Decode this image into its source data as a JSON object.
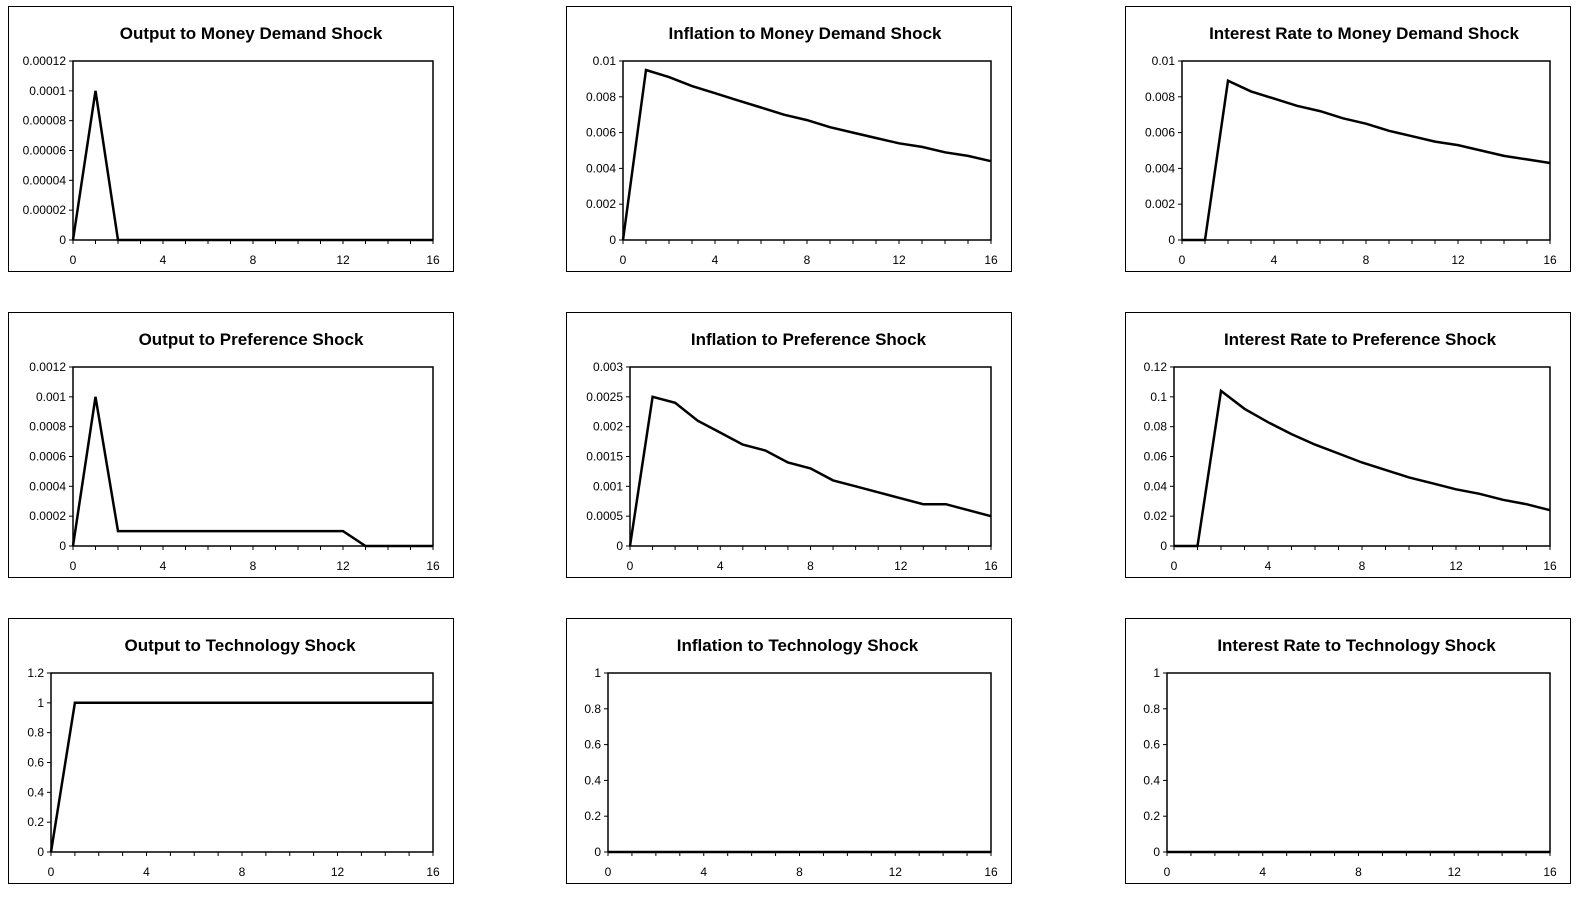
{
  "chart_data": [
    {
      "type": "line",
      "title": "Output to Money Demand Shock",
      "x": [
        0,
        1,
        2,
        3,
        4,
        5,
        6,
        7,
        8,
        9,
        10,
        11,
        12,
        13,
        14,
        15,
        16
      ],
      "values": [
        0,
        0.0001,
        0,
        0,
        0,
        0,
        0,
        0,
        0,
        0,
        0,
        0,
        0,
        0,
        0,
        0,
        0
      ],
      "ylim": [
        0,
        0.00012
      ],
      "yticks": [
        "0.00012",
        "0.0001",
        "0.00008",
        "0.00006",
        "0.00004",
        "0.00002",
        "0"
      ],
      "ytick_values": [
        0.00012,
        0.0001,
        8e-05,
        6e-05,
        4e-05,
        2e-05,
        0
      ],
      "xticks": [
        "0",
        "4",
        "8",
        "12",
        "16"
      ],
      "xtick_values": [
        0,
        4,
        8,
        12,
        16
      ],
      "xlim": [
        0,
        16
      ],
      "grid": false
    },
    {
      "type": "line",
      "title": "Inflation to Money Demand Shock",
      "x": [
        0,
        1,
        2,
        3,
        4,
        5,
        6,
        7,
        8,
        9,
        10,
        11,
        12,
        13,
        14,
        15,
        16
      ],
      "values": [
        0,
        0.0095,
        0.0091,
        0.0086,
        0.0082,
        0.0078,
        0.0074,
        0.007,
        0.0067,
        0.0063,
        0.006,
        0.0057,
        0.0054,
        0.0052,
        0.0049,
        0.0047,
        0.0044
      ],
      "ylim": [
        0,
        0.01
      ],
      "yticks": [
        "0.01",
        "0.008",
        "0.006",
        "0.004",
        "0.002",
        "0"
      ],
      "ytick_values": [
        0.01,
        0.008,
        0.006,
        0.004,
        0.002,
        0
      ],
      "xticks": [
        "0",
        "4",
        "8",
        "12",
        "16"
      ],
      "xtick_values": [
        0,
        4,
        8,
        12,
        16
      ],
      "xlim": [
        0,
        16
      ],
      "grid": false
    },
    {
      "type": "line",
      "title": "Interest Rate to Money Demand Shock",
      "x": [
        0,
        1,
        2,
        3,
        4,
        5,
        6,
        7,
        8,
        9,
        10,
        11,
        12,
        13,
        14,
        15,
        16
      ],
      "values": [
        0,
        0,
        0.0089,
        0.0083,
        0.0079,
        0.0075,
        0.0072,
        0.0068,
        0.0065,
        0.0061,
        0.0058,
        0.0055,
        0.0053,
        0.005,
        0.0047,
        0.0045,
        0.0043
      ],
      "ylim": [
        0,
        0.01
      ],
      "yticks": [
        "0.01",
        "0.008",
        "0.006",
        "0.004",
        "0.002",
        "0"
      ],
      "ytick_values": [
        0.01,
        0.008,
        0.006,
        0.004,
        0.002,
        0
      ],
      "xticks": [
        "0",
        "4",
        "8",
        "12",
        "16"
      ],
      "xtick_values": [
        0,
        4,
        8,
        12,
        16
      ],
      "xlim": [
        0,
        16
      ],
      "grid": false
    },
    {
      "type": "line",
      "title": "Output to Preference Shock",
      "x": [
        0,
        1,
        2,
        3,
        4,
        5,
        6,
        7,
        8,
        9,
        10,
        11,
        12,
        13,
        14,
        15,
        16
      ],
      "values": [
        0,
        0.001,
        0.0001,
        0.0001,
        0.0001,
        0.0001,
        0.0001,
        0.0001,
        0.0001,
        0.0001,
        0.0001,
        0.0001,
        0.0001,
        0,
        0,
        0,
        0
      ],
      "ylim": [
        0,
        0.0012
      ],
      "yticks": [
        "0.0012",
        "0.001",
        "0.0008",
        "0.0006",
        "0.0004",
        "0.0002",
        "0"
      ],
      "ytick_values": [
        0.0012,
        0.001,
        0.0008,
        0.0006,
        0.0004,
        0.0002,
        0
      ],
      "xticks": [
        "0",
        "4",
        "8",
        "12",
        "16"
      ],
      "xtick_values": [
        0,
        4,
        8,
        12,
        16
      ],
      "xlim": [
        0,
        16
      ],
      "grid": false
    },
    {
      "type": "line",
      "title": "Inflation to Preference Shock",
      "x": [
        0,
        1,
        2,
        3,
        4,
        5,
        6,
        7,
        8,
        9,
        10,
        11,
        12,
        13,
        14,
        15,
        16
      ],
      "values": [
        0,
        0.0025,
        0.0024,
        0.0021,
        0.0019,
        0.0017,
        0.0016,
        0.0014,
        0.0013,
        0.0011,
        0.001,
        0.0009,
        0.0008,
        0.0007,
        0.0007,
        0.0006,
        0.0005
      ],
      "ylim": [
        0,
        0.003
      ],
      "yticks": [
        "0.003",
        "0.0025",
        "0.002",
        "0.0015",
        "0.001",
        "0.0005",
        "0"
      ],
      "ytick_values": [
        0.003,
        0.0025,
        0.002,
        0.0015,
        0.001,
        0.0005,
        0
      ],
      "xticks": [
        "0",
        "4",
        "8",
        "12",
        "16"
      ],
      "xtick_values": [
        0,
        4,
        8,
        12,
        16
      ],
      "xlim": [
        0,
        16
      ],
      "grid": false
    },
    {
      "type": "line",
      "title": "Interest Rate to Preference Shock",
      "x": [
        0,
        1,
        2,
        3,
        4,
        5,
        6,
        7,
        8,
        9,
        10,
        11,
        12,
        13,
        14,
        15,
        16
      ],
      "values": [
        0,
        0,
        0.104,
        0.092,
        0.083,
        0.075,
        0.068,
        0.062,
        0.056,
        0.051,
        0.046,
        0.042,
        0.038,
        0.035,
        0.031,
        0.028,
        0.024
      ],
      "ylim": [
        0,
        0.12
      ],
      "yticks": [
        "0.12",
        "0.1",
        "0.08",
        "0.06",
        "0.04",
        "0.02",
        "0"
      ],
      "ytick_values": [
        0.12,
        0.1,
        0.08,
        0.06,
        0.04,
        0.02,
        0
      ],
      "xticks": [
        "0",
        "4",
        "8",
        "12",
        "16"
      ],
      "xtick_values": [
        0,
        4,
        8,
        12,
        16
      ],
      "xlim": [
        0,
        16
      ],
      "grid": false
    },
    {
      "type": "line",
      "title": "Output to Technology Shock",
      "x": [
        0,
        1,
        2,
        3,
        4,
        5,
        6,
        7,
        8,
        9,
        10,
        11,
        12,
        13,
        14,
        15,
        16
      ],
      "values": [
        0,
        1,
        1,
        1,
        1,
        1,
        1,
        1,
        1,
        1,
        1,
        1,
        1,
        1,
        1,
        1,
        1
      ],
      "ylim": [
        0,
        1.2
      ],
      "yticks": [
        "1.2",
        "1",
        "0.8",
        "0.6",
        "0.4",
        "0.2",
        "0"
      ],
      "ytick_values": [
        1.2,
        1,
        0.8,
        0.6,
        0.4,
        0.2,
        0
      ],
      "xticks": [
        "0",
        "4",
        "8",
        "12",
        "16"
      ],
      "xtick_values": [
        0,
        4,
        8,
        12,
        16
      ],
      "xlim": [
        0,
        16
      ],
      "grid": false
    },
    {
      "type": "line",
      "title": "Inflation to Technology Shock",
      "x": [
        0,
        1,
        2,
        3,
        4,
        5,
        6,
        7,
        8,
        9,
        10,
        11,
        12,
        13,
        14,
        15,
        16
      ],
      "values": [
        0,
        0,
        0,
        0,
        0,
        0,
        0,
        0,
        0,
        0,
        0,
        0,
        0,
        0,
        0,
        0,
        0
      ],
      "ylim": [
        0,
        1
      ],
      "yticks": [
        "1",
        "0.8",
        "0.6",
        "0.4",
        "0.2",
        "0"
      ],
      "ytick_values": [
        1,
        0.8,
        0.6,
        0.4,
        0.2,
        0
      ],
      "xticks": [
        "0",
        "4",
        "8",
        "12",
        "16"
      ],
      "xtick_values": [
        0,
        4,
        8,
        12,
        16
      ],
      "xlim": [
        0,
        16
      ],
      "grid": false
    },
    {
      "type": "line",
      "title": "Interest Rate to Technology Shock",
      "x": [
        0,
        1,
        2,
        3,
        4,
        5,
        6,
        7,
        8,
        9,
        10,
        11,
        12,
        13,
        14,
        15,
        16
      ],
      "values": [
        0,
        0,
        0,
        0,
        0,
        0,
        0,
        0,
        0,
        0,
        0,
        0,
        0,
        0,
        0,
        0,
        0
      ],
      "ylim": [
        0,
        1
      ],
      "yticks": [
        "1",
        "0.8",
        "0.6",
        "0.4",
        "0.2",
        "0"
      ],
      "ytick_values": [
        1,
        0.8,
        0.6,
        0.4,
        0.2,
        0
      ],
      "xticks": [
        "0",
        "4",
        "8",
        "12",
        "16"
      ],
      "xtick_values": [
        0,
        4,
        8,
        12,
        16
      ],
      "xlim": [
        0,
        16
      ],
      "grid": false
    }
  ]
}
